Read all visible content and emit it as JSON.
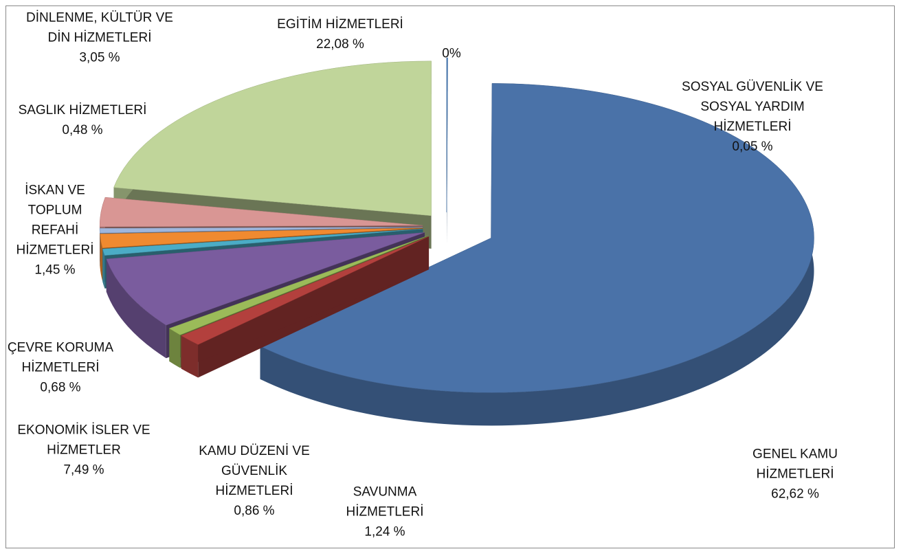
{
  "chart_data": {
    "type": "pie",
    "categories": [
      null,
      "SOSYAL GÜVENLİK VE SOSYAL YARDIM HİZMETLERİ",
      "GENEL KAMU HİZMETLERİ",
      "SAVUNMA HİZMETLERİ",
      "KAMU DÜZENİ VE GÜVENLİK HİZMETLERİ",
      "EKONOMİK İSLER VE HİZMETLER",
      "ÇEVRE KORUMA HİZMETLERİ",
      "İSKAN VE TOPLUM REFAHİ HİZMETLERİ",
      "SAGLIK HİZMETLERİ",
      "DİNLENME, KÜLTÜR VE DİN HİZMETLERİ",
      "EGİTİM HİZMETLERİ"
    ],
    "values": [
      0,
      0.05,
      62.62,
      1.24,
      0.86,
      7.49,
      0.68,
      1.45,
      0.48,
      3.05,
      22.08
    ],
    "value_labels": [
      "0%",
      "0,05 %",
      "62,62 %",
      "1,24  %",
      "0,86 %",
      "7,49 %",
      "0,68 %",
      "1,45 %",
      "0,48 %",
      "3,05 %",
      "22,08  %"
    ],
    "colors": [
      "#4f81bd",
      "#4f81bd",
      "#4a72a8",
      "#b3403d",
      "#9bbb59",
      "#7a5c9e",
      "#4bacc6",
      "#f08a30",
      "#9fb6dc",
      "#d99694",
      "#c0d59a"
    ]
  }
}
